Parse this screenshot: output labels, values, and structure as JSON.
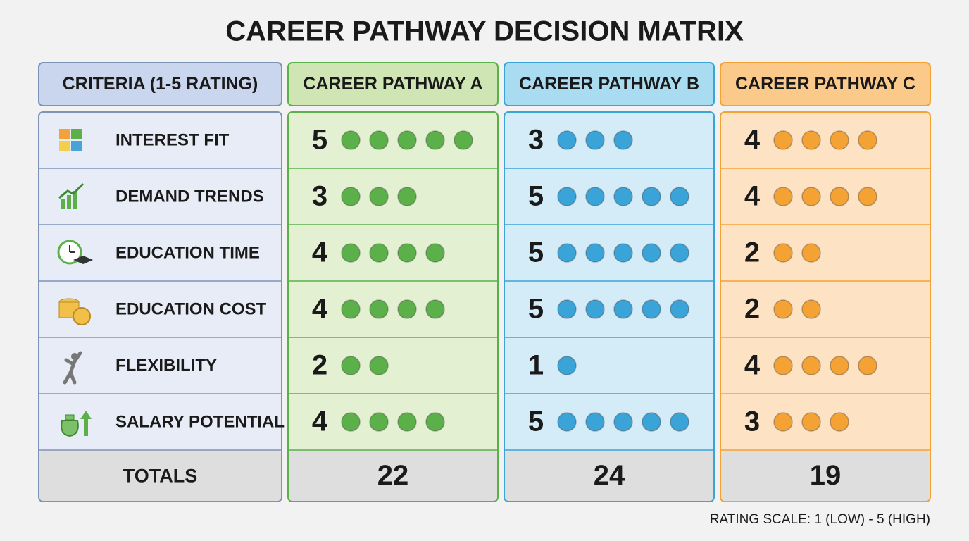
{
  "title": "CAREER PATHWAY DECISION MATRIX",
  "table": {
    "header": [
      "CRITERIA (1-5 RATING)",
      "CAREER PATHWAY A",
      "CAREER PATHWAY B",
      "CAREER PATHWAY C"
    ],
    "colors": [
      "#7f93b8",
      "#5cb04a",
      "#3aa3d8",
      "#f5a234"
    ],
    "rows": [
      {
        "label": "INTEREST FIT",
        "ratings": [
          5,
          3,
          4
        ]
      },
      {
        "label": "DEMAND TRENDS",
        "ratings": [
          3,
          5,
          4
        ]
      },
      {
        "label": "EDUCATION TIME",
        "ratings": [
          4,
          5,
          2
        ]
      },
      {
        "label": "EDUCATION COST",
        "ratings": [
          4,
          5,
          2
        ]
      },
      {
        "label": "FLEXIBILITY",
        "ratings": [
          2,
          1,
          4
        ]
      },
      {
        "label": "SALARY POTENTIAL",
        "ratings": [
          4,
          5,
          3
        ]
      }
    ],
    "totals": {
      "label": "TOTALS",
      "values": [
        22,
        24,
        19
      ]
    }
  },
  "note": "RATING SCALE: 1 (LOW) - 5 (HIGH)"
}
